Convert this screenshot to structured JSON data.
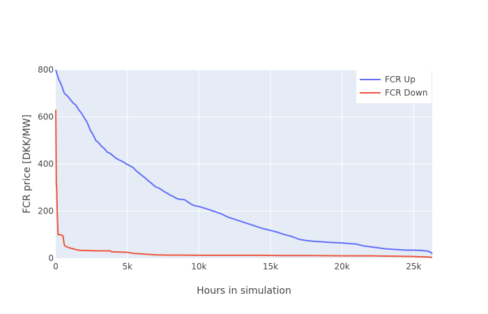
{
  "chart_data": {
    "type": "line",
    "title": "",
    "xlabel": "Hours in simulation",
    "ylabel": "FCR price [DKK/MW]",
    "xlim": [
      0,
      26300
    ],
    "ylim": [
      0,
      800
    ],
    "xticks": [
      0,
      5000,
      10000,
      15000,
      20000,
      25000
    ],
    "xtick_labels": [
      "0",
      "5k",
      "10k",
      "15k",
      "20k",
      "25k"
    ],
    "yticks": [
      0,
      200,
      400,
      600,
      800
    ],
    "ytick_labels": [
      "0",
      "200",
      "400",
      "600",
      "800"
    ],
    "grid": true,
    "legend": "top-right",
    "series": [
      {
        "name": "FCR Up",
        "color": "#636efa",
        "x": [
          0,
          200,
          400,
          600,
          800,
          1000,
          1200,
          1400,
          1600,
          1800,
          2000,
          2200,
          2400,
          2600,
          2800,
          3000,
          3200,
          3400,
          3600,
          3800,
          4000,
          4200,
          4400,
          4600,
          4800,
          5000,
          5200,
          5400,
          5600,
          5800,
          6000,
          6200,
          6400,
          6600,
          6800,
          7000,
          7200,
          7400,
          7600,
          7800,
          8000,
          8200,
          8400,
          8600,
          8800,
          9000,
          9200,
          9400,
          9600,
          9800,
          10000,
          10500,
          11000,
          11500,
          12000,
          12500,
          13000,
          13500,
          14000,
          14500,
          15000,
          15500,
          16000,
          16500,
          17000,
          17500,
          18000,
          18500,
          19000,
          19500,
          20000,
          20500,
          21000,
          21500,
          22000,
          22500,
          23000,
          23500,
          24000,
          24500,
          25000,
          25500,
          26000,
          26200,
          26300
        ],
        "y": [
          800,
          760,
          735,
          700,
          690,
          675,
          660,
          650,
          630,
          615,
          595,
          575,
          545,
          525,
          500,
          490,
          475,
          465,
          450,
          445,
          435,
          425,
          418,
          412,
          405,
          398,
          392,
          385,
          372,
          362,
          352,
          343,
          332,
          322,
          312,
          302,
          298,
          290,
          282,
          275,
          268,
          262,
          255,
          250,
          250,
          248,
          240,
          232,
          225,
          222,
          220,
          210,
          200,
          190,
          175,
          165,
          155,
          145,
          135,
          125,
          118,
          110,
          100,
          92,
          80,
          75,
          72,
          70,
          68,
          66,
          65,
          62,
          60,
          52,
          48,
          44,
          40,
          38,
          36,
          34,
          34,
          33,
          30,
          25,
          18
        ]
      },
      {
        "name": "FCR Down",
        "color": "#ef553b",
        "x": [
          0,
          20,
          40,
          60,
          80,
          100,
          130,
          160,
          200,
          300,
          500,
          600,
          700,
          900,
          1200,
          1500,
          1800,
          2500,
          3000,
          3800,
          3900,
          4500,
          5000,
          5500,
          6000,
          7000,
          8000,
          9000,
          10000,
          12000,
          14000,
          16000,
          18000,
          20000,
          22000,
          23000,
          24000,
          25000,
          25500,
          26000,
          26300
        ],
        "y": [
          630,
          480,
          310,
          310,
          260,
          200,
          150,
          100,
          100,
          100,
          95,
          55,
          50,
          45,
          40,
          35,
          33,
          32,
          31,
          31,
          27,
          26,
          25,
          20,
          18,
          14,
          13,
          13,
          12,
          12,
          12,
          11,
          11,
          10,
          10,
          9,
          8,
          7,
          6,
          5,
          3
        ]
      }
    ]
  }
}
